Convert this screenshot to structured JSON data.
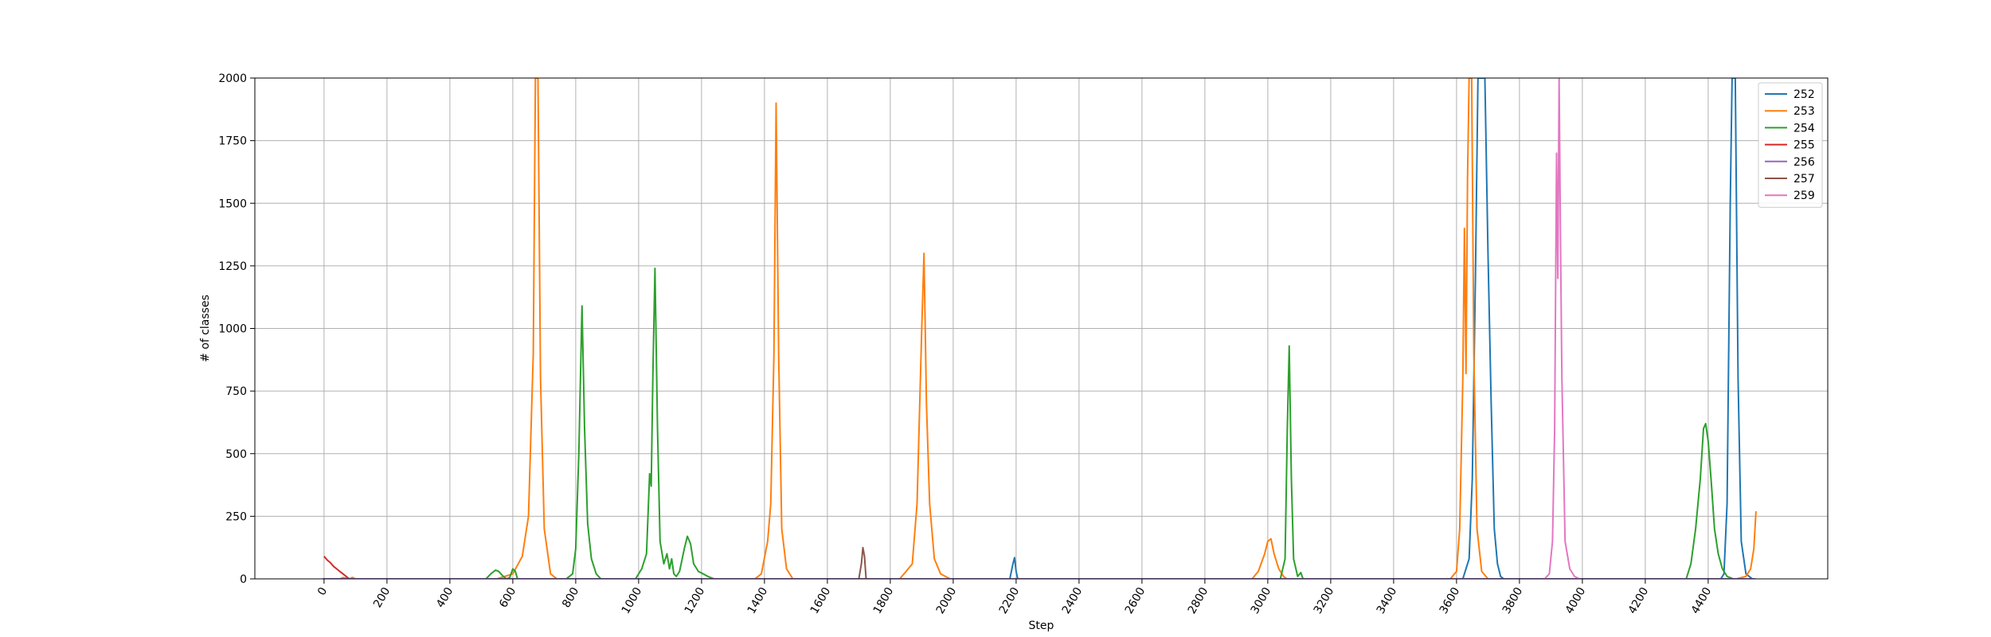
{
  "chart_data": {
    "type": "line",
    "title": "",
    "xlabel": "Step",
    "ylabel": "# of classes",
    "xlim": [
      -220,
      4780
    ],
    "ylim": [
      0,
      2000
    ],
    "x_ticks": [
      0,
      200,
      400,
      600,
      800,
      1000,
      1200,
      1400,
      1600,
      1800,
      2000,
      2200,
      2400,
      2600,
      2800,
      3000,
      3200,
      3400,
      3600,
      3800,
      4000,
      4200,
      4400
    ],
    "y_ticks": [
      0,
      250,
      500,
      750,
      1000,
      1250,
      1500,
      1750,
      2000
    ],
    "grid": true,
    "legend_position": "top-right",
    "series": [
      {
        "name": "252",
        "color": "#1f77b4",
        "points": [
          [
            2180,
            0
          ],
          [
            2190,
            60
          ],
          [
            2195,
            85
          ],
          [
            2200,
            30
          ],
          [
            2205,
            0
          ],
          [
            3620,
            0
          ],
          [
            3640,
            80
          ],
          [
            3650,
            400
          ],
          [
            3660,
            1200
          ],
          [
            3668,
            2000
          ],
          [
            3690,
            2000
          ],
          [
            3700,
            1300
          ],
          [
            3710,
            700
          ],
          [
            3720,
            200
          ],
          [
            3730,
            60
          ],
          [
            3740,
            10
          ],
          [
            3750,
            0
          ],
          [
            4440,
            0
          ],
          [
            4450,
            20
          ],
          [
            4460,
            300
          ],
          [
            4470,
            1500
          ],
          [
            4476,
            2000
          ],
          [
            4486,
            2000
          ],
          [
            4495,
            800
          ],
          [
            4505,
            150
          ],
          [
            4520,
            20
          ],
          [
            4540,
            0
          ]
        ]
      },
      {
        "name": "253",
        "color": "#ff7f0e",
        "points": [
          [
            50,
            0
          ],
          [
            60,
            5
          ],
          [
            80,
            0
          ],
          [
            90,
            6
          ],
          [
            100,
            0
          ],
          [
            550,
            0
          ],
          [
            600,
            20
          ],
          [
            630,
            90
          ],
          [
            650,
            250
          ],
          [
            665,
            900
          ],
          [
            672,
            2000
          ],
          [
            680,
            2000
          ],
          [
            688,
            800
          ],
          [
            700,
            200
          ],
          [
            720,
            20
          ],
          [
            740,
            0
          ],
          [
            1370,
            0
          ],
          [
            1390,
            20
          ],
          [
            1410,
            150
          ],
          [
            1420,
            300
          ],
          [
            1430,
            900
          ],
          [
            1437,
            1900
          ],
          [
            1445,
            900
          ],
          [
            1455,
            200
          ],
          [
            1470,
            40
          ],
          [
            1490,
            0
          ],
          [
            1830,
            0
          ],
          [
            1850,
            30
          ],
          [
            1870,
            60
          ],
          [
            1885,
            300
          ],
          [
            1900,
            1000
          ],
          [
            1907,
            1300
          ],
          [
            1915,
            700
          ],
          [
            1925,
            300
          ],
          [
            1940,
            80
          ],
          [
            1960,
            20
          ],
          [
            1990,
            0
          ],
          [
            2950,
            0
          ],
          [
            2970,
            30
          ],
          [
            2990,
            100
          ],
          [
            3000,
            150
          ],
          [
            3010,
            160
          ],
          [
            3020,
            100
          ],
          [
            3035,
            40
          ],
          [
            3050,
            10
          ],
          [
            3060,
            0
          ],
          [
            3580,
            0
          ],
          [
            3600,
            30
          ],
          [
            3610,
            200
          ],
          [
            3620,
            800
          ],
          [
            3625,
            1400
          ],
          [
            3630,
            820
          ],
          [
            3635,
            1600
          ],
          [
            3640,
            2000
          ],
          [
            3648,
            2000
          ],
          [
            3655,
            900
          ],
          [
            3665,
            200
          ],
          [
            3680,
            30
          ],
          [
            3700,
            0
          ],
          [
            4490,
            0
          ],
          [
            4520,
            10
          ],
          [
            4535,
            40
          ],
          [
            4545,
            120
          ],
          [
            4552,
            270
          ]
        ]
      },
      {
        "name": "254",
        "color": "#2ca02c",
        "points": [
          [
            515,
            0
          ],
          [
            530,
            20
          ],
          [
            545,
            35
          ],
          [
            555,
            30
          ],
          [
            570,
            10
          ],
          [
            580,
            0
          ],
          [
            590,
            5
          ],
          [
            600,
            40
          ],
          [
            608,
            30
          ],
          [
            615,
            0
          ],
          [
            770,
            0
          ],
          [
            790,
            20
          ],
          [
            800,
            120
          ],
          [
            810,
            500
          ],
          [
            820,
            1090
          ],
          [
            828,
            600
          ],
          [
            838,
            220
          ],
          [
            850,
            80
          ],
          [
            865,
            20
          ],
          [
            880,
            0
          ],
          [
            990,
            0
          ],
          [
            1010,
            40
          ],
          [
            1025,
            100
          ],
          [
            1035,
            420
          ],
          [
            1040,
            370
          ],
          [
            1045,
            800
          ],
          [
            1052,
            1240
          ],
          [
            1060,
            600
          ],
          [
            1068,
            150
          ],
          [
            1080,
            60
          ],
          [
            1090,
            100
          ],
          [
            1098,
            40
          ],
          [
            1105,
            80
          ],
          [
            1112,
            20
          ],
          [
            1120,
            10
          ],
          [
            1130,
            30
          ],
          [
            1145,
            120
          ],
          [
            1155,
            170
          ],
          [
            1165,
            140
          ],
          [
            1175,
            60
          ],
          [
            1190,
            30
          ],
          [
            1205,
            20
          ],
          [
            1220,
            10
          ],
          [
            1240,
            0
          ],
          [
            3040,
            0
          ],
          [
            3055,
            80
          ],
          [
            3062,
            600
          ],
          [
            3068,
            930
          ],
          [
            3075,
            400
          ],
          [
            3082,
            80
          ],
          [
            3095,
            10
          ],
          [
            3105,
            25
          ],
          [
            3112,
            0
          ],
          [
            4330,
            0
          ],
          [
            4345,
            60
          ],
          [
            4360,
            200
          ],
          [
            4375,
            400
          ],
          [
            4385,
            600
          ],
          [
            4392,
            620
          ],
          [
            4400,
            550
          ],
          [
            4410,
            380
          ],
          [
            4420,
            200
          ],
          [
            4432,
            100
          ],
          [
            4445,
            40
          ],
          [
            4460,
            10
          ],
          [
            4480,
            0
          ]
        ]
      },
      {
        "name": "255",
        "color": "#d62728",
        "points": [
          [
            0,
            90
          ],
          [
            10,
            75
          ],
          [
            20,
            65
          ],
          [
            30,
            50
          ],
          [
            40,
            40
          ],
          [
            50,
            30
          ],
          [
            60,
            20
          ],
          [
            70,
            10
          ],
          [
            80,
            0
          ]
        ]
      },
      {
        "name": "256",
        "color": "#9467bd",
        "points": [
          [
            -5,
            0
          ],
          [
            4550,
            0
          ]
        ]
      },
      {
        "name": "257",
        "color": "#8c564b",
        "points": [
          [
            1700,
            0
          ],
          [
            1708,
            60
          ],
          [
            1713,
            125
          ],
          [
            1718,
            90
          ],
          [
            1723,
            0
          ]
        ]
      },
      {
        "name": "259",
        "color": "#e377c2",
        "points": [
          [
            3880,
            0
          ],
          [
            3895,
            20
          ],
          [
            3905,
            150
          ],
          [
            3912,
            600
          ],
          [
            3918,
            1700
          ],
          [
            3922,
            1200
          ],
          [
            3926,
            2000
          ],
          [
            3930,
            1400
          ],
          [
            3935,
            800
          ],
          [
            3945,
            150
          ],
          [
            3960,
            40
          ],
          [
            3975,
            10
          ],
          [
            3990,
            0
          ]
        ]
      }
    ]
  }
}
